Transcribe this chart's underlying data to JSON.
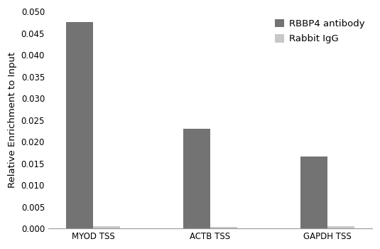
{
  "categories": [
    "MYOD TSS",
    "ACTB TSS",
    "GAPDH TSS"
  ],
  "rbbp4_values": [
    0.0475,
    0.023,
    0.0165
  ],
  "igg_values": [
    0.00055,
    0.00035,
    0.00055
  ],
  "rbbp4_color": "#737373",
  "igg_color": "#c8c8c8",
  "ylabel": "Relative Enrichment to Input",
  "ylim": [
    0,
    0.05
  ],
  "yticks": [
    0.0,
    0.005,
    0.01,
    0.015,
    0.02,
    0.025,
    0.03,
    0.035,
    0.04,
    0.045,
    0.05
  ],
  "legend_labels": [
    "RBBP4 antibody",
    "Rabbit IgG"
  ],
  "bar_width": 0.3,
  "background_color": "#ffffff",
  "tick_fontsize": 8.5,
  "label_fontsize": 9.5,
  "legend_fontsize": 9.5
}
